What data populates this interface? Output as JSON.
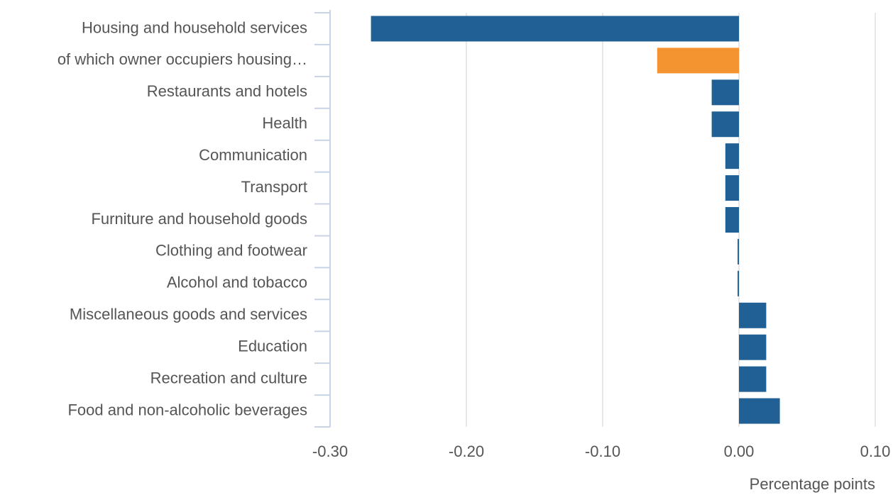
{
  "chart_data": {
    "type": "bar",
    "orientation": "horizontal",
    "categories": [
      "Housing and household services",
      "of which owner occupiers housing…",
      "Restaurants and hotels",
      "Health",
      "Communication",
      "Transport",
      "Furniture and household goods",
      "Clothing and footwear",
      "Alcohol and tobacco",
      "Miscellaneous goods and services",
      "Education",
      "Recreation and culture",
      "Food and non-alcoholic beverages"
    ],
    "values": [
      -0.27,
      -0.06,
      -0.02,
      -0.02,
      -0.01,
      -0.01,
      -0.01,
      -0.001,
      -0.001,
      0.02,
      0.02,
      0.02,
      0.03
    ],
    "colors": [
      "#206095",
      "#f39431",
      "#206095",
      "#206095",
      "#206095",
      "#206095",
      "#206095",
      "#206095",
      "#206095",
      "#206095",
      "#206095",
      "#206095",
      "#206095"
    ],
    "xlabel": "Percentage points",
    "xlim": [
      -0.3,
      0.1
    ],
    "xticks": [
      {
        "value": -0.3,
        "label": "-0.30"
      },
      {
        "value": -0.2,
        "label": "-0.20"
      },
      {
        "value": -0.1,
        "label": "-0.10"
      },
      {
        "value": 0,
        "label": "0.00"
      },
      {
        "value": 0.1,
        "label": "0.10"
      }
    ],
    "grid": true
  }
}
